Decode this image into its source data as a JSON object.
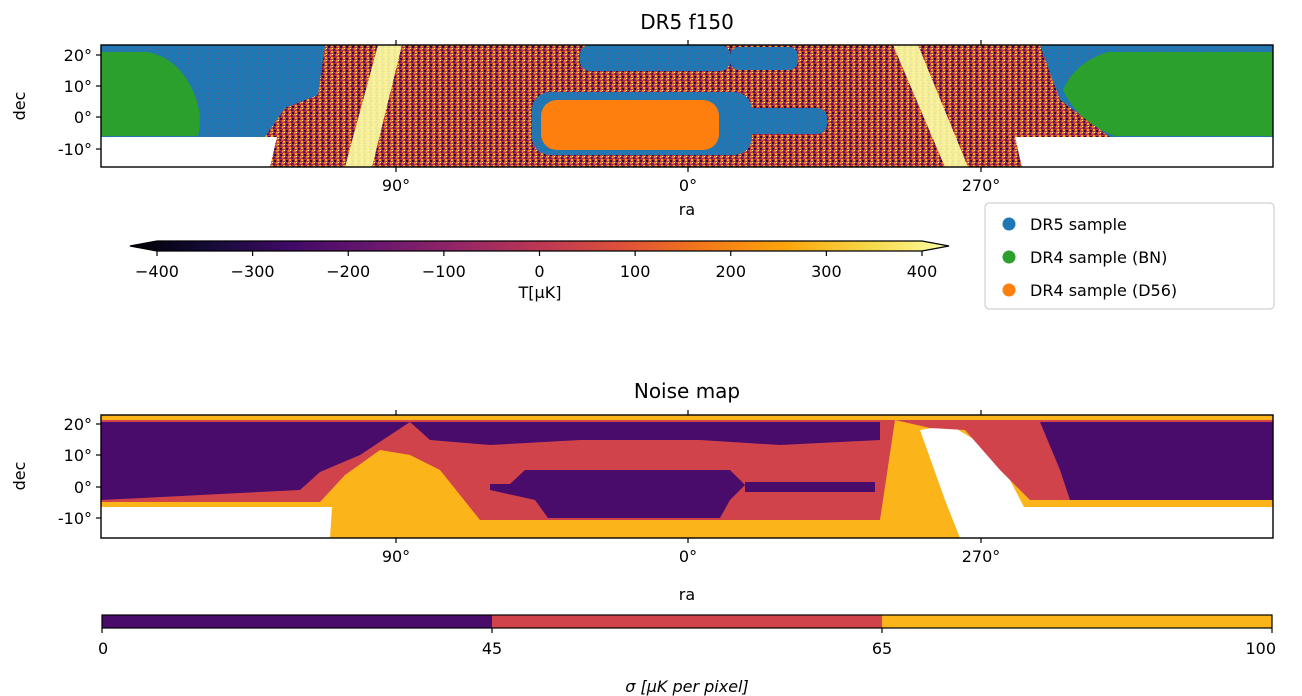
{
  "chart_data": [
    {
      "type": "heatmap",
      "title": "DR5 f150",
      "xlabel": "ra",
      "ylabel": "dec",
      "x_ticks": [
        "90°",
        "0°",
        "270°"
      ],
      "y_ticks": [
        "20°",
        "10°",
        "0°",
        "-10°"
      ],
      "colormap": "inferno",
      "colorbar": {
        "label": "T[μK]",
        "range": [
          -400,
          400
        ],
        "ticks": [
          "−400",
          "−300",
          "−200",
          "−100",
          "0",
          "100",
          "200",
          "300",
          "400"
        ],
        "extend": "both"
      },
      "legend": {
        "placement": "lower-right",
        "entries": [
          {
            "label": "DR5 sample",
            "color": "#1f77b4"
          },
          {
            "label": "DR4 sample (BN)",
            "color": "#2ca02c"
          },
          {
            "label": "DR4 sample (D56)",
            "color": "#ff7f0e"
          }
        ]
      }
    },
    {
      "type": "heatmap",
      "title": "Noise map",
      "xlabel": "ra",
      "ylabel": "dec",
      "x_ticks": [
        "90°",
        "0°",
        "270°"
      ],
      "y_ticks": [
        "20°",
        "10°",
        "0°",
        "-10°"
      ],
      "colorbar": {
        "label": "σ [μK per pixel]",
        "boundaries": [
          0,
          45,
          65,
          100
        ],
        "ticks": [
          "0",
          "45",
          "65",
          "100"
        ],
        "colors": [
          "#4a0c6b",
          "#d1434b",
          "#fbb51a"
        ]
      }
    }
  ]
}
